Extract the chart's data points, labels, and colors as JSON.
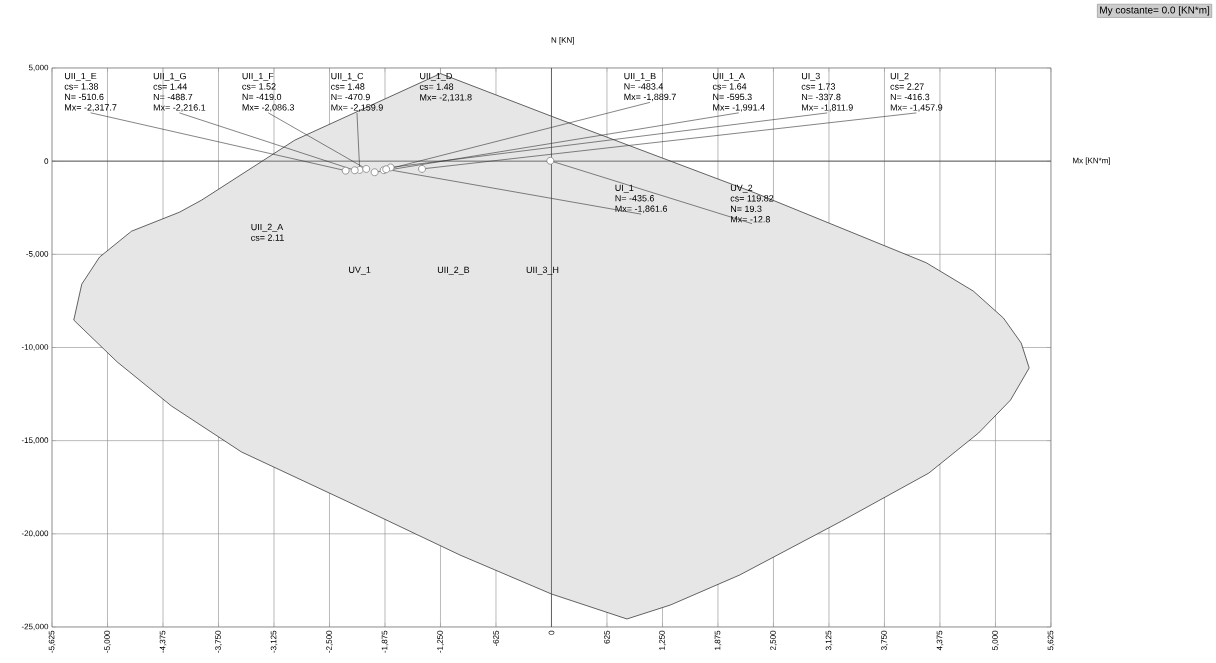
{
  "chart_data": {
    "type": "scatter",
    "subtitle": "My costante= 0.0  [KN*m]",
    "xlabel": "Mx [KN*m]",
    "ylabel": "N [KN]",
    "xlim": [
      -5625,
      5625
    ],
    "ylim": [
      -25000,
      5000
    ],
    "xticks": [
      {
        "value": -5625,
        "label": "-5,625"
      },
      {
        "value": -5000,
        "label": "-5,000"
      },
      {
        "value": -4375,
        "label": "-4,375"
      },
      {
        "value": -3750,
        "label": "-3,750"
      },
      {
        "value": -3125,
        "label": "-3,125"
      },
      {
        "value": -2500,
        "label": "-2,500"
      },
      {
        "value": -1875,
        "label": "-1,875"
      },
      {
        "value": -1250,
        "label": "-1,250"
      },
      -625,
      0,
      625,
      {
        "value": 1250,
        "label": "1,250"
      },
      {
        "value": 1875,
        "label": "1,875"
      },
      {
        "value": 2500,
        "label": "2,500"
      },
      {
        "value": 3125,
        "label": "3,125"
      },
      {
        "value": 3750,
        "label": "3,750"
      },
      {
        "value": 4375,
        "label": "4,375"
      },
      {
        "value": 5000,
        "label": "5,000"
      },
      {
        "value": 5625,
        "label": "5,625"
      }
    ],
    "yticks": [
      {
        "value": 5000,
        "label": "5,000"
      },
      0,
      {
        "value": -5000,
        "label": "-5,000"
      },
      {
        "value": -10000,
        "label": "-10,000"
      },
      {
        "value": -15000,
        "label": "-15,000"
      },
      {
        "value": -20000,
        "label": "-20,000"
      },
      {
        "value": -25000,
        "label": "-25,000"
      }
    ],
    "grid": true,
    "marker": "circle",
    "series": [
      {
        "type": "area",
        "marker": "none",
        "color": "#e6e6e6",
        "x": [
          -4190,
          -4730,
          -5090,
          -5290,
          -5380,
          -4890,
          -4280,
          -3490,
          -2310,
          -1030,
          0,
          850,
          1340,
          2120,
          3270,
          4250,
          4810,
          5170,
          5380,
          5290,
          5090,
          4750,
          4220,
          2300,
          0,
          -1250,
          -2890,
          -3940
        ],
        "values": [
          -2740,
          -3760,
          -5150,
          -6600,
          -8530,
          -10780,
          -13140,
          -15610,
          -18240,
          -21140,
          -23230,
          -24570,
          -23820,
          -22210,
          -19310,
          -16740,
          -14590,
          -12820,
          -11100,
          -9760,
          -8420,
          -6970,
          -5450,
          -1720,
          2410,
          4700,
          1130,
          -2090
        ]
      },
      {
        "color": "#808080",
        "x": [
          -2159.9,
          -1889.7,
          -1991.4,
          -1811.9,
          -1457.9,
          -1861.6,
          -2317.7,
          -2086.3,
          -2216.1,
          -12.8
        ],
        "values": [
          -470.9,
          -483.4,
          -595.3,
          -337.8,
          -416.3,
          -435.6,
          -510.6,
          -419.0,
          -488.7,
          19.3
        ]
      }
    ],
    "annotations": [
      "UII_1_C",
      "cs= 1.48",
      "N= -470.9",
      {
        "text": "Mx= -2,159.9",
        "x": -2159.9,
        "y": -470.9
      },
      "UII_1_B",
      "N= -483.4",
      {
        "text": "Mx= -1,889.7",
        "x": -1889.7,
        "y": -483.4
      },
      "UII_1_A",
      "cs= 1.64",
      "N= -595.3",
      {
        "text": "Mx= -1,991.4",
        "x": -1991.4,
        "y": -595.3
      },
      "UI_3",
      "cs= 1.73",
      "N= -337.8",
      {
        "text": "Mx= -1,811.9",
        "x": -1811.9,
        "y": -337.8
      },
      "UI_2",
      "cs= 2.27",
      "N= -416.3",
      {
        "text": "Mx= -1,457.9",
        "x": -1457.9,
        "y": -416.3
      },
      "UI_1",
      "N= -435.6",
      {
        "text": "Mx= -1,861.6",
        "x": -1861.6,
        "y": -435.6
      },
      "UII_1_E",
      "cs= 1.38",
      "N= -510.6",
      {
        "text": "Mx= -2,317.7",
        "x": -2317.7,
        "y": -510.6
      },
      "UII_1_F",
      "cs= 1.52",
      "N= -419.0",
      {
        "text": "Mx= -2,086.3",
        "x": -2086.3,
        "y": -419.0
      },
      "UII_1_G",
      "cs= 1.44",
      "N= -488.7",
      {
        "text": "Mx= -2,216.1",
        "x": -2216.1,
        "y": -488.7
      },
      "UV_2",
      "cs= 119.82",
      "N= 19.3",
      {
        "text": "Mx= -12.8",
        "x": -12.8,
        "y": 19.3
      },
      "UII_1_D",
      "cs= 1.48",
      "Mx= -2,131.8",
      "UII_2_A",
      "cs= 2.11",
      "UV_1",
      "UII_2_B",
      "UII_3_H"
    ]
  }
}
